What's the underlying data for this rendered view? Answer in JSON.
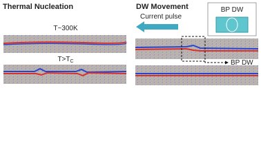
{
  "panels": [
    {
      "title": "Thermal Nucleation",
      "images": [
        {
          "label": "T~300K"
        },
        {
          "label": {
            "text": "T>T",
            "subscript": "C"
          }
        }
      ]
    },
    {
      "title": "DW Movement",
      "arrow_label": "Current pulse",
      "inset_label": "BP DW",
      "pointer_label": "BP DW"
    }
  ]
}
